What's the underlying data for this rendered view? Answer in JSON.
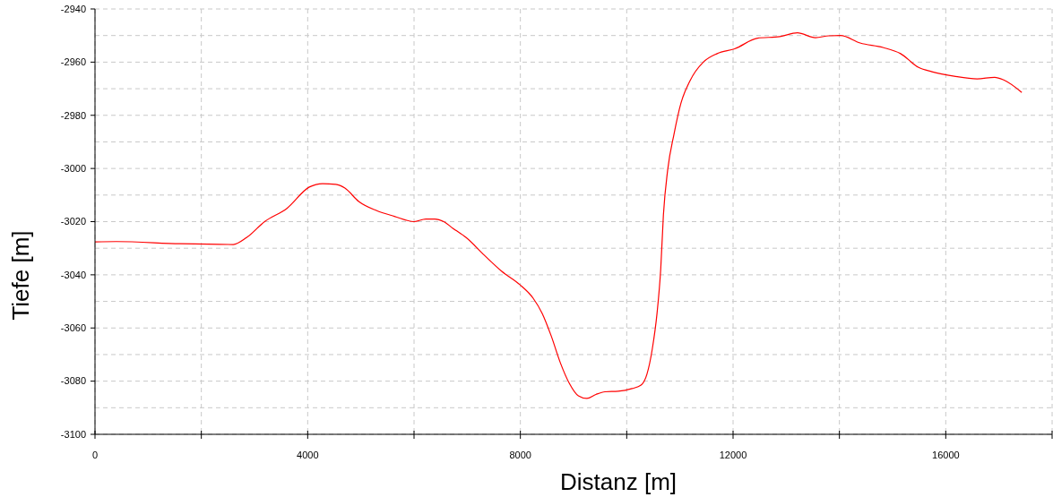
{
  "chart_data": {
    "type": "line",
    "xlabel": "Distanz [m]",
    "ylabel": "Tiefe [m]",
    "xlim": [
      0,
      18000
    ],
    "xticks": [
      0,
      {
        "value": 2000,
        "label": null
      },
      4000,
      {
        "value": 6000,
        "label": null
      },
      8000,
      {
        "value": 10000,
        "label": null
      },
      12000,
      {
        "value": 14000,
        "label": null
      },
      16000,
      {
        "value": 18000,
        "label": null
      }
    ],
    "ylim": [
      -3100,
      -2940
    ],
    "yticks": [
      -3100,
      {
        "value": -3090,
        "label": null
      },
      -3080,
      {
        "value": -3070,
        "label": null
      },
      -3060,
      {
        "value": -3050,
        "label": null
      },
      -3040,
      {
        "value": -3030,
        "label": null
      },
      -3020,
      {
        "value": -3010,
        "label": null
      },
      -3000,
      {
        "value": -2990,
        "label": null
      },
      -2980,
      {
        "value": -2970,
        "label": null
      },
      -2960,
      {
        "value": -2950,
        "label": null
      },
      -2940
    ],
    "grid": true,
    "marker": "none",
    "line_style": "solid",
    "x": [
      0,
      400,
      1600,
      2600,
      2850,
      3190,
      3610,
      4030,
      4280,
      4530,
      4700,
      4960,
      5290,
      5630,
      6000,
      6220,
      6390,
      6560,
      6730,
      6980,
      7320,
      7650,
      7990,
      8240,
      8410,
      8580,
      8750,
      8920,
      9090,
      9250,
      9420,
      9590,
      9840,
      10100,
      10270,
      10380,
      10480,
      10570,
      10640,
      10690,
      10770,
      10890,
      11020,
      11190,
      11440,
      11700,
      12030,
      12460,
      12880,
      13210,
      13550,
      13800,
      14020,
      14390,
      14820,
      15150,
      15490,
      15740,
      16160,
      16590,
      16920,
      17090,
      17430
    ],
    "series": [
      {
        "color": "#ff0000",
        "values": [
          -3027.6,
          -3027.5,
          -3028.3,
          -3028.6,
          -3026,
          -3020,
          -3015,
          -3007,
          -3005.7,
          -3006,
          -3007.4,
          -3012.4,
          -3015.8,
          -3018,
          -3020,
          -3019,
          -3019,
          -3020,
          -3022.5,
          -3026,
          -3032.6,
          -3038.7,
          -3043.7,
          -3048.8,
          -3054.5,
          -3063,
          -3073,
          -3080.8,
          -3085.5,
          -3086.5,
          -3085,
          -3084,
          -3083.8,
          -3082.8,
          -3081.5,
          -3077.4,
          -3068,
          -3054.5,
          -3037.7,
          -3017.5,
          -3000.6,
          -2987,
          -2975.4,
          -2967,
          -2960,
          -2956.8,
          -2955,
          -2951,
          -2950.4,
          -2949,
          -2950.8,
          -2950.1,
          -2950,
          -2952.8,
          -2954.5,
          -2956.8,
          -2962,
          -2963.6,
          -2965.3,
          -2966.3,
          -2965.7,
          -2966.7,
          -2971.4
        ]
      }
    ]
  }
}
